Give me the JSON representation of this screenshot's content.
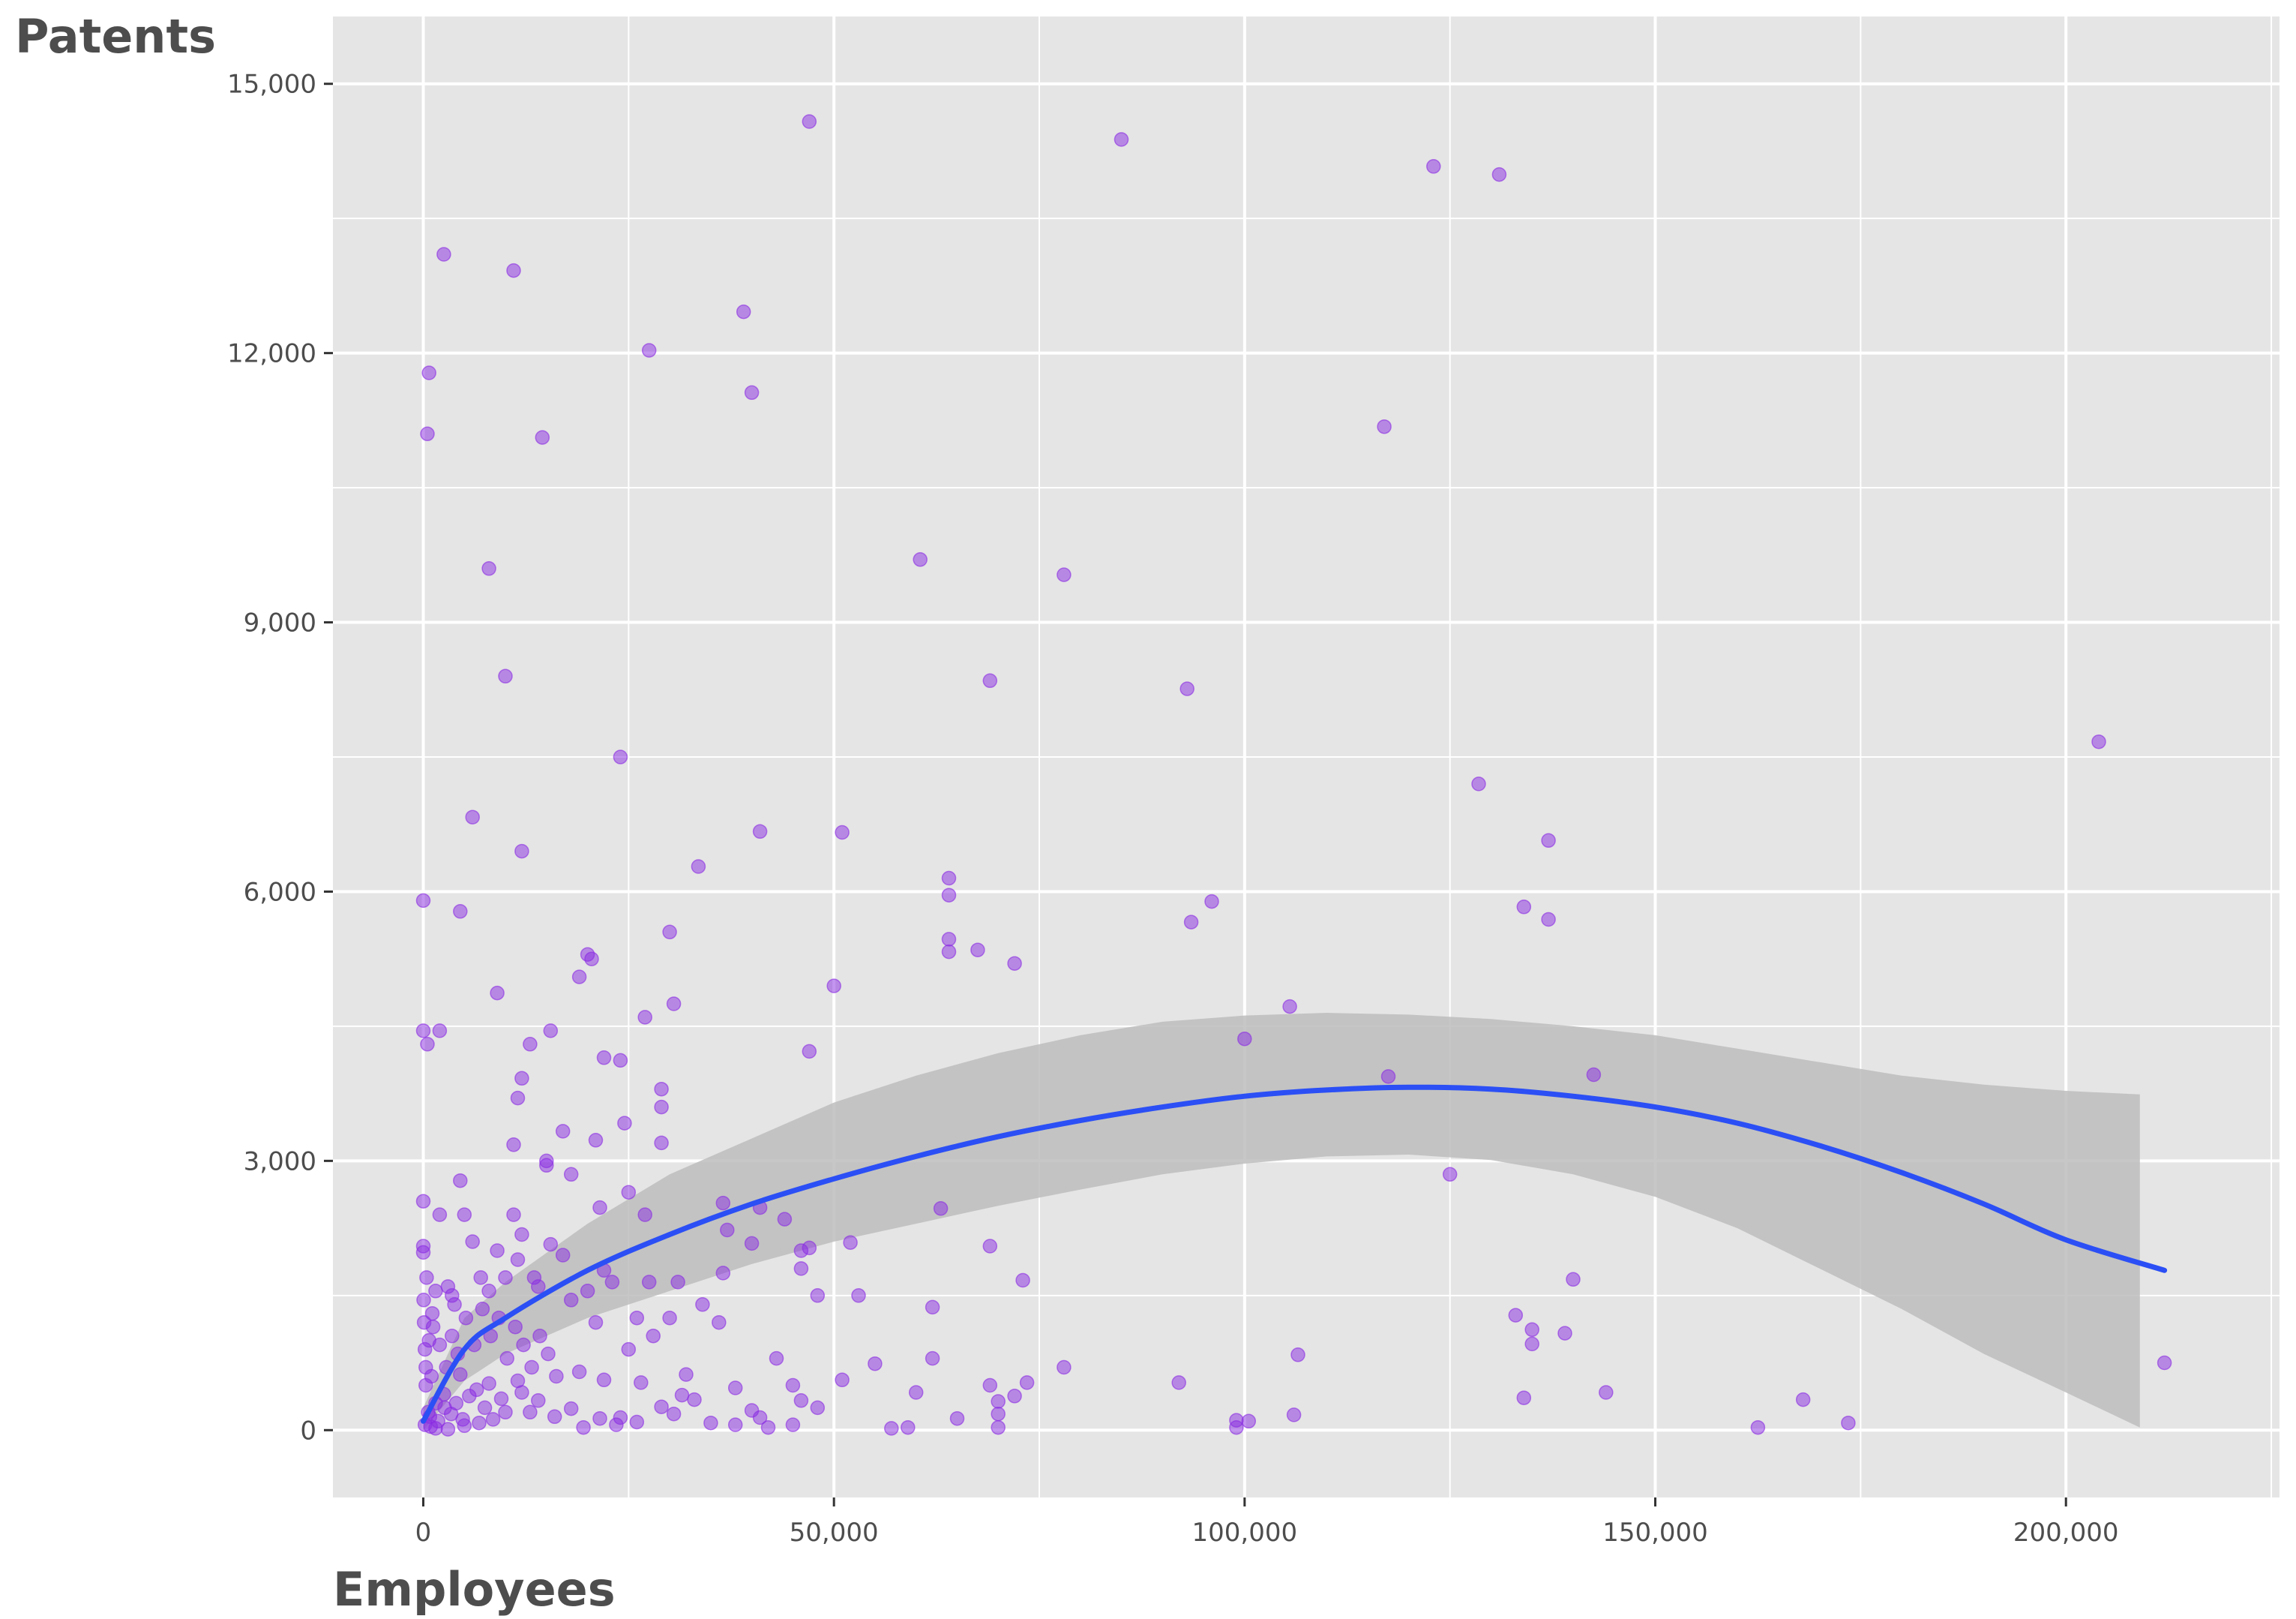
{
  "colors": {
    "panel_background": "#e5e5e5",
    "grid_line": "#ffffff",
    "point_fill": "#8a2be2",
    "smooth_line": "#2b4ff5",
    "confidence_band": "#bdbdbd",
    "axis_text": "#4d4d4d"
  },
  "chart_data": {
    "type": "scatter",
    "title": "",
    "xlabel": "Employees",
    "ylabel": "Patents",
    "xlim": [
      -11000,
      226000
    ],
    "ylim": [
      -750,
      15750
    ],
    "x_ticks": [
      0,
      50000,
      100000,
      150000,
      200000
    ],
    "x_tick_labels": [
      "0",
      "50,000",
      "100,000",
      "150,000",
      "200,000"
    ],
    "y_ticks": [
      0,
      3000,
      6000,
      9000,
      12000,
      15000
    ],
    "y_tick_labels": [
      "0",
      "3,000",
      "6,000",
      "9,000",
      "12,000",
      "15,000"
    ],
    "grid": true,
    "legend": "none",
    "points": [
      [
        0,
        5900
      ],
      [
        0,
        4450
      ],
      [
        500,
        4300
      ],
      [
        0,
        2550
      ],
      [
        0,
        2050
      ],
      [
        0,
        1980
      ],
      [
        500,
        11100
      ],
      [
        700,
        11780
      ],
      [
        2000,
        4450
      ],
      [
        2500,
        13100
      ],
      [
        4500,
        5780
      ],
      [
        6000,
        6830
      ],
      [
        8000,
        9600
      ],
      [
        9000,
        4870
      ],
      [
        10000,
        8400
      ],
      [
        11000,
        12920
      ],
      [
        12000,
        6450
      ],
      [
        14500,
        11060
      ],
      [
        13000,
        4300
      ],
      [
        15500,
        4450
      ],
      [
        12000,
        3920
      ],
      [
        11500,
        3700
      ],
      [
        11000,
        3180
      ],
      [
        15000,
        3000
      ],
      [
        15000,
        2950
      ],
      [
        17000,
        3330
      ],
      [
        18000,
        2850
      ],
      [
        19000,
        5050
      ],
      [
        20000,
        5300
      ],
      [
        20500,
        5250
      ],
      [
        21000,
        3230
      ],
      [
        21500,
        2480
      ],
      [
        22000,
        4150
      ],
      [
        24000,
        4120
      ],
      [
        24500,
        3420
      ],
      [
        24000,
        7500
      ],
      [
        25000,
        2650
      ],
      [
        27000,
        4600
      ],
      [
        27500,
        12030
      ],
      [
        27000,
        2400
      ],
      [
        29000,
        3800
      ],
      [
        29000,
        3600
      ],
      [
        29000,
        3200
      ],
      [
        30000,
        5550
      ],
      [
        30500,
        4750
      ],
      [
        33500,
        6280
      ],
      [
        36500,
        2530
      ],
      [
        37000,
        2230
      ],
      [
        39000,
        12460
      ],
      [
        40000,
        11560
      ],
      [
        40000,
        2080
      ],
      [
        41000,
        6670
      ],
      [
        41000,
        2480
      ],
      [
        46000,
        2000
      ],
      [
        47000,
        2030
      ],
      [
        47000,
        14580
      ],
      [
        47000,
        4220
      ],
      [
        50000,
        4950
      ],
      [
        51000,
        6660
      ],
      [
        52000,
        2090
      ],
      [
        60500,
        9700
      ],
      [
        63000,
        2470
      ],
      [
        64000,
        6150
      ],
      [
        64000,
        5960
      ],
      [
        64000,
        5470
      ],
      [
        64000,
        5330
      ],
      [
        67500,
        5350
      ],
      [
        69000,
        8350
      ],
      [
        72000,
        5200
      ],
      [
        69000,
        2050
      ],
      [
        78000,
        9530
      ],
      [
        85000,
        14380
      ],
      [
        93000,
        8260
      ],
      [
        93500,
        5660
      ],
      [
        96000,
        5890
      ],
      [
        100000,
        4360
      ],
      [
        105500,
        4720
      ],
      [
        117000,
        11180
      ],
      [
        117500,
        3940
      ],
      [
        123000,
        14080
      ],
      [
        125000,
        2850
      ],
      [
        128500,
        7200
      ],
      [
        131000,
        13990
      ],
      [
        134000,
        5830
      ],
      [
        137000,
        6570
      ],
      [
        137000,
        5690
      ],
      [
        142500,
        3960
      ],
      [
        204000,
        7670
      ],
      [
        2000,
        2400
      ],
      [
        3500,
        1500
      ],
      [
        4500,
        2780
      ],
      [
        5000,
        2400
      ],
      [
        6000,
        2100
      ],
      [
        7000,
        1700
      ],
      [
        8000,
        1550
      ],
      [
        9000,
        2000
      ],
      [
        10000,
        1700
      ],
      [
        11000,
        2400
      ],
      [
        11500,
        1900
      ],
      [
        12000,
        2180
      ],
      [
        13500,
        1700
      ],
      [
        14000,
        1600
      ],
      [
        15500,
        2070
      ],
      [
        17000,
        1950
      ],
      [
        18000,
        1450
      ],
      [
        19000,
        650
      ],
      [
        20000,
        1550
      ],
      [
        21000,
        1200
      ],
      [
        22000,
        1780
      ],
      [
        23000,
        1650
      ],
      [
        25000,
        900
      ],
      [
        26000,
        1250
      ],
      [
        27500,
        1650
      ],
      [
        28000,
        1050
      ],
      [
        30000,
        1250
      ],
      [
        31000,
        1650
      ],
      [
        34000,
        1400
      ],
      [
        36000,
        1200
      ],
      [
        36500,
        1750
      ],
      [
        44000,
        2350
      ],
      [
        46000,
        1800
      ],
      [
        48000,
        1500
      ],
      [
        53000,
        1500
      ],
      [
        62000,
        1370
      ],
      [
        73000,
        1670
      ],
      [
        51000,
        560
      ],
      [
        55000,
        740
      ],
      [
        60000,
        420
      ],
      [
        62000,
        800
      ],
      [
        65000,
        130
      ],
      [
        69000,
        500
      ],
      [
        70000,
        320
      ],
      [
        70000,
        180
      ],
      [
        70000,
        30
      ],
      [
        72000,
        380
      ],
      [
        73500,
        530
      ],
      [
        78000,
        700
      ],
      [
        92000,
        530
      ],
      [
        99000,
        110
      ],
      [
        99000,
        30
      ],
      [
        100500,
        100
      ],
      [
        106000,
        170
      ],
      [
        106500,
        840
      ],
      [
        133000,
        1280
      ],
      [
        134000,
        360
      ],
      [
        135000,
        1120
      ],
      [
        135000,
        960
      ],
      [
        139000,
        1080
      ],
      [
        140000,
        1680
      ],
      [
        144000,
        420
      ],
      [
        162500,
        30
      ],
      [
        168000,
        340
      ],
      [
        173500,
        80
      ],
      [
        212000,
        750
      ],
      [
        59000,
        30
      ],
      [
        45000,
        500
      ],
      [
        46000,
        330
      ],
      [
        38000,
        470
      ],
      [
        40000,
        220
      ],
      [
        42000,
        30
      ],
      [
        33000,
        340
      ],
      [
        32000,
        620
      ],
      [
        29000,
        260
      ],
      [
        26000,
        90
      ],
      [
        24000,
        140
      ],
      [
        22000,
        560
      ],
      [
        18000,
        240
      ],
      [
        16000,
        150
      ],
      [
        14000,
        330
      ],
      [
        12000,
        420
      ],
      [
        10000,
        200
      ],
      [
        8500,
        120
      ],
      [
        5000,
        50
      ],
      [
        3000,
        10
      ],
      [
        1500,
        300
      ],
      [
        800,
        150
      ],
      [
        300,
        500
      ],
      [
        200,
        900
      ],
      [
        100,
        1200
      ],
      [
        50,
        1450
      ],
      [
        400,
        1700
      ],
      [
        1200,
        1150
      ],
      [
        2000,
        950
      ],
      [
        2800,
        700
      ],
      [
        3500,
        1050
      ],
      [
        4200,
        850
      ],
      [
        5200,
        1250
      ],
      [
        6200,
        950
      ],
      [
        7200,
        1350
      ],
      [
        8200,
        1050
      ],
      [
        9200,
        1250
      ],
      [
        10200,
        800
      ],
      [
        11200,
        1150
      ],
      [
        12200,
        950
      ],
      [
        13200,
        700
      ],
      [
        14200,
        1050
      ],
      [
        15200,
        850
      ],
      [
        16200,
        600
      ],
      [
        1000,
        600
      ],
      [
        2500,
        400
      ],
      [
        4000,
        300
      ],
      [
        6500,
        450
      ],
      [
        7500,
        250
      ],
      [
        9500,
        350
      ],
      [
        11500,
        550
      ],
      [
        13000,
        200
      ],
      [
        600,
        200
      ],
      [
        1800,
        100
      ],
      [
        2600,
        250
      ],
      [
        3400,
        180
      ],
      [
        4800,
        120
      ],
      [
        5600,
        380
      ],
      [
        6800,
        80
      ],
      [
        200,
        60
      ],
      [
        900,
        40
      ],
      [
        1500,
        20
      ],
      [
        300,
        700
      ],
      [
        700,
        1000
      ],
      [
        1100,
        1300
      ],
      [
        1500,
        1550
      ],
      [
        3000,
        1600
      ],
      [
        3800,
        1400
      ],
      [
        38000,
        60
      ],
      [
        48000,
        250
      ],
      [
        57000,
        20
      ],
      [
        26500,
        530
      ],
      [
        30500,
        180
      ],
      [
        19500,
        30
      ],
      [
        21500,
        130
      ],
      [
        23500,
        60
      ],
      [
        35000,
        80
      ],
      [
        41000,
        140
      ],
      [
        43000,
        800
      ],
      [
        45000,
        60
      ],
      [
        31500,
        390
      ],
      [
        8000,
        520
      ],
      [
        4500,
        620
      ]
    ],
    "smooth_fit": {
      "x": [
        0,
        5000,
        10000,
        20000,
        30000,
        40000,
        50000,
        60000,
        70000,
        80000,
        90000,
        100000,
        110000,
        120000,
        130000,
        140000,
        150000,
        160000,
        170000,
        180000,
        190000,
        200000,
        212000
      ],
      "y": [
        100,
        900,
        1250,
        1780,
        2180,
        2520,
        2800,
        3050,
        3270,
        3450,
        3600,
        3720,
        3790,
        3820,
        3800,
        3720,
        3600,
        3420,
        3170,
        2870,
        2520,
        2120,
        1780
      ],
      "lower": [
        0,
        550,
        850,
        1250,
        1550,
        1850,
        2100,
        2300,
        2500,
        2680,
        2850,
        2970,
        3050,
        3070,
        3010,
        2850,
        2600,
        2250,
        1800,
        1350,
        850,
        420,
        30
      ],
      "upper": [
        250,
        1250,
        1650,
        2300,
        2850,
        3250,
        3650,
        3950,
        4200,
        4400,
        4550,
        4620,
        4650,
        4630,
        4580,
        4500,
        4400,
        4250,
        4100,
        3950,
        3850,
        3780,
        3740
      ],
      "band_x_end": 209000
    }
  }
}
